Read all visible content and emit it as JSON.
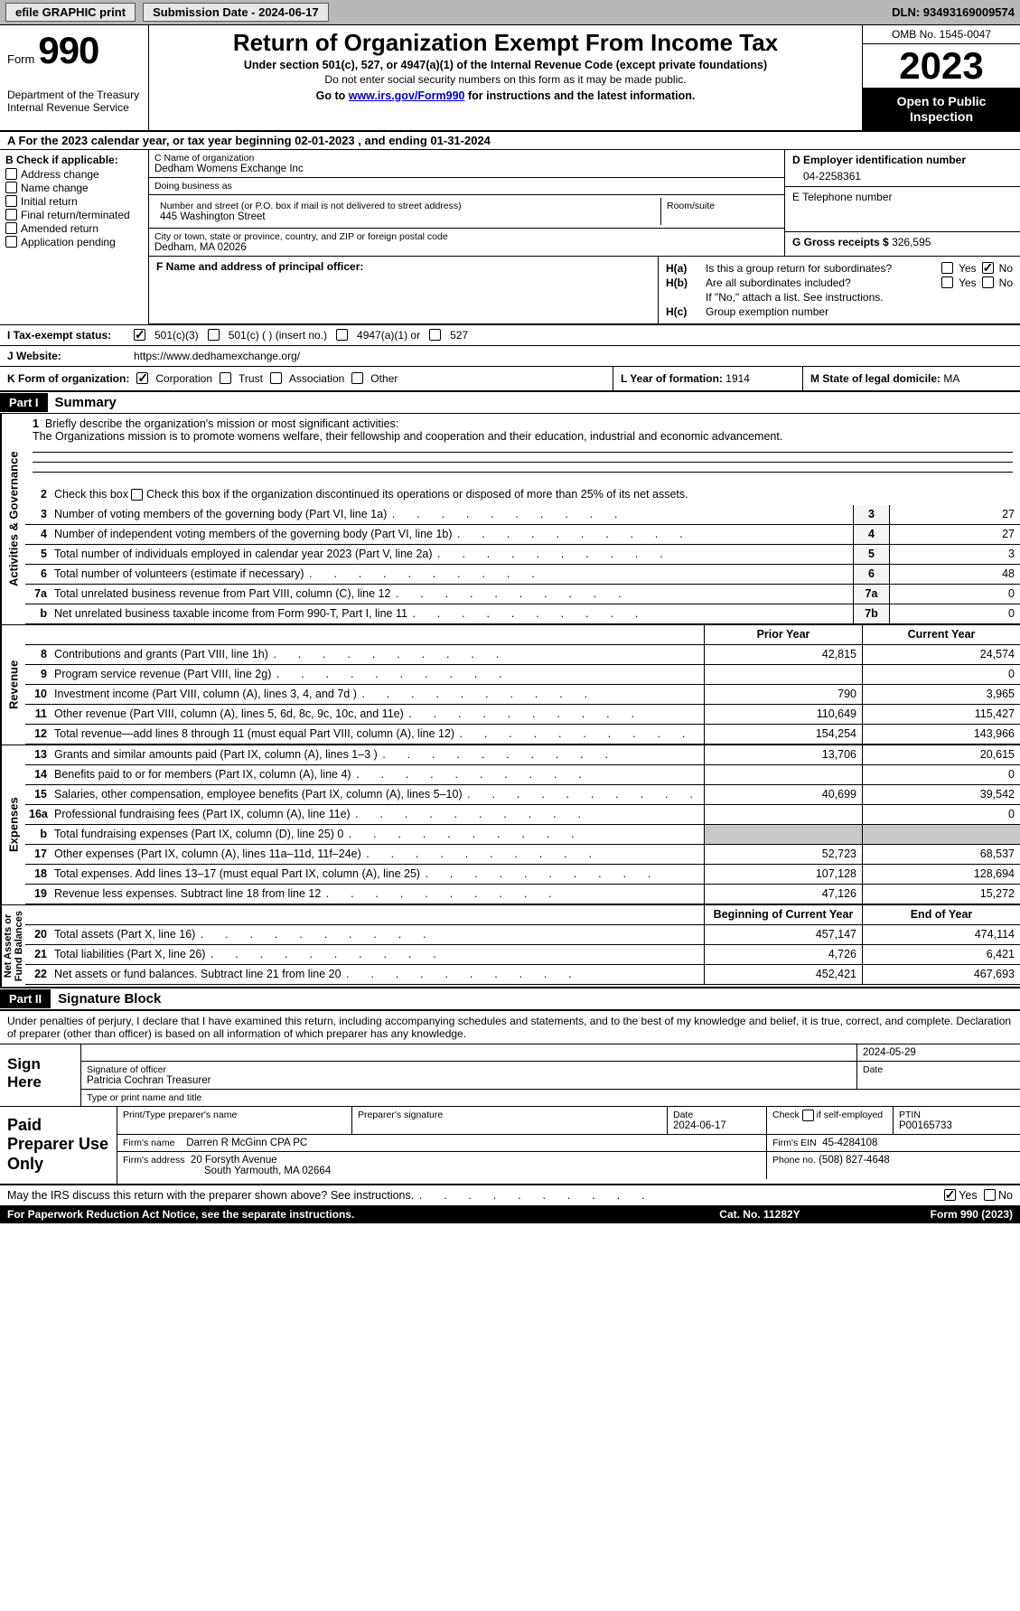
{
  "topbar": {
    "efile": "efile GRAPHIC print",
    "submission": "Submission Date - 2024-06-17",
    "dln": "DLN: 93493169009574"
  },
  "header": {
    "form_label": "Form",
    "form_num": "990",
    "title": "Return of Organization Exempt From Income Tax",
    "sub1": "Under section 501(c), 527, or 4947(a)(1) of the Internal Revenue Code (except private foundations)",
    "sub2": "Do not enter social security numbers on this form as it may be made public.",
    "sub3_pre": "Go to ",
    "sub3_link": "www.irs.gov/Form990",
    "sub3_post": " for instructions and the latest information.",
    "dept": "Department of the Treasury\nInternal Revenue Service",
    "omb": "OMB No. 1545-0047",
    "year": "2023",
    "open": "Open to Public Inspection"
  },
  "lineA": "A  For the 2023 calendar year, or tax year beginning 02-01-2023   , and ending 01-31-2024",
  "colB": {
    "label": "B Check if applicable:",
    "opts": [
      "Address change",
      "Name change",
      "Initial return",
      "Final return/terminated",
      "Amended return",
      "Application pending"
    ]
  },
  "colC": {
    "name_label": "C Name of organization",
    "name": "Dedham Womens Exchange Inc",
    "dba_label": "Doing business as",
    "dba": "",
    "street_label": "Number and street (or P.O. box if mail is not delivered to street address)",
    "street": "445 Washington Street",
    "suite_label": "Room/suite",
    "city_label": "City or town, state or province, country, and ZIP or foreign postal code",
    "city": "Dedham, MA  02026"
  },
  "colD": {
    "ein_label": "D Employer identification number",
    "ein": "04-2258361",
    "phone_label": "E Telephone number",
    "phone": "",
    "gross_label": "G Gross receipts $",
    "gross": "326,595"
  },
  "rowF": {
    "label": "F  Name and address of principal officer:",
    "value": ""
  },
  "rowH": {
    "ha_label": "H(a)",
    "ha_text": "Is this a group return for subordinates?",
    "hb_label": "H(b)",
    "hb_text": "Are all subordinates included?",
    "hb_note": "If \"No,\" attach a list. See instructions.",
    "hc_label": "H(c)",
    "hc_text": "Group exemption number",
    "yes": "Yes",
    "no": "No"
  },
  "rowI": {
    "label": "I    Tax-exempt status:",
    "opts": [
      "501(c)(3)",
      "501(c) (  ) (insert no.)",
      "4947(a)(1) or",
      "527"
    ]
  },
  "rowJ": {
    "label": "J   Website:",
    "value": "https://www.dedhamexchange.org/"
  },
  "rowK": {
    "label": "K Form of organization:",
    "opts": [
      "Corporation",
      "Trust",
      "Association",
      "Other"
    ]
  },
  "rowL": {
    "label": "L Year of formation:",
    "value": "1914"
  },
  "rowM": {
    "label": "M State of legal domicile:",
    "value": "MA"
  },
  "part1": {
    "header": "Part I",
    "title": "Summary",
    "tabs": {
      "ag": "Activities & Governance",
      "rev": "Revenue",
      "exp": "Expenses",
      "na": "Net Assets or\nFund Balances"
    },
    "l1_label": "Briefly describe the organization's mission or most significant activities:",
    "l1_text": "The Organizations mission is to promote womens welfare, their fellowship and cooperation and their education, industrial and economic advancement.",
    "l2": "Check this box       if the organization discontinued its operations or disposed of more than 25% of its net assets.",
    "lines_ag": [
      {
        "n": "3",
        "d": "Number of voting members of the governing body (Part VI, line 1a)",
        "box": "3",
        "v": "27"
      },
      {
        "n": "4",
        "d": "Number of independent voting members of the governing body (Part VI, line 1b)",
        "box": "4",
        "v": "27"
      },
      {
        "n": "5",
        "d": "Total number of individuals employed in calendar year 2023 (Part V, line 2a)",
        "box": "5",
        "v": "3"
      },
      {
        "n": "6",
        "d": "Total number of volunteers (estimate if necessary)",
        "box": "6",
        "v": "48"
      },
      {
        "n": "7a",
        "d": "Total unrelated business revenue from Part VIII, column (C), line 12",
        "box": "7a",
        "v": "0"
      },
      {
        "n": "b",
        "d": "Net unrelated business taxable income from Form 990-T, Part I, line 11",
        "box": "7b",
        "v": "0"
      }
    ],
    "col_prior": "Prior Year",
    "col_curr": "Current Year",
    "lines_rev": [
      {
        "n": "8",
        "d": "Contributions and grants (Part VIII, line 1h)",
        "p": "42,815",
        "c": "24,574"
      },
      {
        "n": "9",
        "d": "Program service revenue (Part VIII, line 2g)",
        "p": "",
        "c": "0"
      },
      {
        "n": "10",
        "d": "Investment income (Part VIII, column (A), lines 3, 4, and 7d )",
        "p": "790",
        "c": "3,965"
      },
      {
        "n": "11",
        "d": "Other revenue (Part VIII, column (A), lines 5, 6d, 8c, 9c, 10c, and 11e)",
        "p": "110,649",
        "c": "115,427"
      },
      {
        "n": "12",
        "d": "Total revenue—add lines 8 through 11 (must equal Part VIII, column (A), line 12)",
        "p": "154,254",
        "c": "143,966"
      }
    ],
    "lines_exp": [
      {
        "n": "13",
        "d": "Grants and similar amounts paid (Part IX, column (A), lines 1–3 )",
        "p": "13,706",
        "c": "20,615"
      },
      {
        "n": "14",
        "d": "Benefits paid to or for members (Part IX, column (A), line 4)",
        "p": "",
        "c": "0"
      },
      {
        "n": "15",
        "d": "Salaries, other compensation, employee benefits (Part IX, column (A), lines 5–10)",
        "p": "40,699",
        "c": "39,542"
      },
      {
        "n": "16a",
        "d": "Professional fundraising fees (Part IX, column (A), line 11e)",
        "p": "",
        "c": "0"
      },
      {
        "n": "b",
        "d": "Total fundraising expenses (Part IX, column (D), line 25) 0",
        "p": "",
        "c": "",
        "shaded": true
      },
      {
        "n": "17",
        "d": "Other expenses (Part IX, column (A), lines 11a–11d, 11f–24e)",
        "p": "52,723",
        "c": "68,537"
      },
      {
        "n": "18",
        "d": "Total expenses. Add lines 13–17 (must equal Part IX, column (A), line 25)",
        "p": "107,128",
        "c": "128,694"
      },
      {
        "n": "19",
        "d": "Revenue less expenses. Subtract line 18 from line 12",
        "p": "47,126",
        "c": "15,272"
      }
    ],
    "col_begin": "Beginning of Current Year",
    "col_end": "End of Year",
    "lines_na": [
      {
        "n": "20",
        "d": "Total assets (Part X, line 16)",
        "p": "457,147",
        "c": "474,114"
      },
      {
        "n": "21",
        "d": "Total liabilities (Part X, line 26)",
        "p": "4,726",
        "c": "6,421"
      },
      {
        "n": "22",
        "d": "Net assets or fund balances. Subtract line 21 from line 20",
        "p": "452,421",
        "c": "467,693"
      }
    ]
  },
  "part2": {
    "header": "Part II",
    "title": "Signature Block",
    "intro": "Under penalties of perjury, I declare that I have examined this return, including accompanying schedules and statements, and to the best of my knowledge and belief, it is true, correct, and complete. Declaration of preparer (other than officer) is based on all information of which preparer has any knowledge."
  },
  "sign": {
    "left": "Sign Here",
    "sig_label": "Signature of officer",
    "date_label": "Date",
    "date": "2024-05-29",
    "officer": "Patricia Cochran  Treasurer",
    "type_label": "Type or print name and title"
  },
  "paid": {
    "left": "Paid Preparer Use Only",
    "print_label": "Print/Type preparer's name",
    "print_name": "",
    "sig_label": "Preparer's signature",
    "date_label": "Date",
    "date": "2024-06-17",
    "check_label": "Check        if self-employed",
    "ptin_label": "PTIN",
    "ptin": "P00165733",
    "firm_name_label": "Firm's name",
    "firm_name": "Darren R McGinn CPA PC",
    "firm_ein_label": "Firm's EIN",
    "firm_ein": "45-4284108",
    "firm_addr_label": "Firm's address",
    "firm_addr1": "20 Forsyth Avenue",
    "firm_addr2": "South Yarmouth, MA  02664",
    "phone_label": "Phone no.",
    "phone": "(508) 827-4648"
  },
  "discuss": {
    "text": "May the IRS discuss this return with the preparer shown above? See instructions.",
    "yes": "Yes",
    "no": "No"
  },
  "footer": {
    "left": "For Paperwork Reduction Act Notice, see the separate instructions.",
    "mid": "Cat. No. 11282Y",
    "right": "Form 990 (2023)"
  }
}
